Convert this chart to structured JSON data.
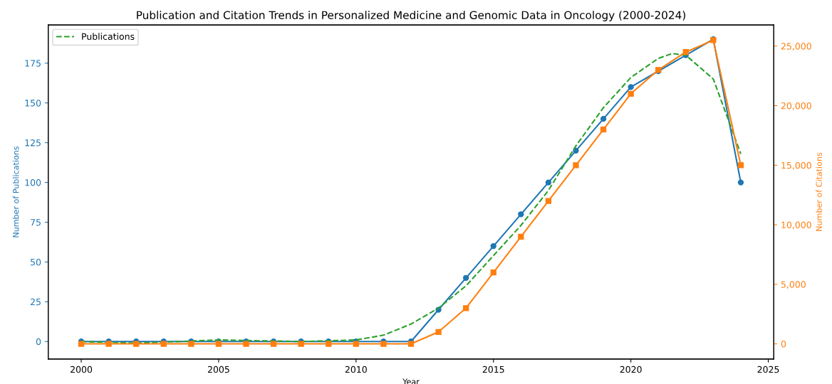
{
  "chart_data": {
    "type": "line",
    "title": "Publication and Citation Trends in Personalized Medicine and Genomic Data in Oncology (2000-2024)",
    "xlabel": "Year",
    "ylabel": "Number of Publications",
    "y2label": "Number of Citations",
    "x": [
      2000,
      2001,
      2002,
      2003,
      2004,
      2005,
      2006,
      2007,
      2008,
      2009,
      2010,
      2011,
      2012,
      2013,
      2014,
      2015,
      2016,
      2017,
      2018,
      2019,
      2020,
      2021,
      2022,
      2023,
      2024
    ],
    "series": [
      {
        "color": "#1f77b4",
        "marker": "circle",
        "line_style": "solid",
        "values": [
          0,
          0,
          0,
          0,
          0,
          0,
          0,
          0,
          0,
          0,
          0,
          0,
          0,
          20,
          40,
          60,
          80,
          100,
          120,
          140,
          160,
          170,
          180,
          190,
          100
        ]
      },
      {
        "color": "#ff7f0e",
        "marker": "square",
        "line_style": "solid",
        "axis": "y2",
        "values": [
          0,
          0,
          0,
          0,
          0,
          0,
          0,
          0,
          0,
          0,
          0,
          0,
          0,
          1000,
          3000,
          6000,
          9000,
          12000,
          15000,
          18000,
          21000,
          23000,
          24500,
          25500,
          15000
        ]
      },
      {
        "name": "Publications",
        "color": "#2ca02c",
        "marker": "none",
        "line_style": "dashed",
        "x": [
          2000,
          2002,
          2005,
          2008,
          2010,
          2011,
          2012,
          2013,
          2014,
          2015,
          2016,
          2017,
          2018,
          2019,
          2020,
          2021,
          2021.5,
          2022,
          2023,
          2024
        ],
        "values": [
          0,
          -1,
          1,
          0,
          1,
          4,
          11,
          21,
          35,
          54,
          73,
          95,
          123,
          147,
          166,
          178,
          181,
          180,
          165,
          118
        ]
      }
    ],
    "xlim": [
      1998.8,
      2025.2
    ],
    "xticks": [
      2000,
      2005,
      2010,
      2015,
      2020,
      2025
    ],
    "ylim": [
      -11,
      199
    ],
    "yticks": [
      0,
      25,
      50,
      75,
      100,
      125,
      150,
      175
    ],
    "y2lim": [
      -1275,
      26775
    ],
    "y2ticks": [
      0,
      {
        "value": 5000,
        "label": "5,000"
      },
      {
        "value": 10000,
        "label": "10,000"
      },
      {
        "value": 15000,
        "label": "15,000"
      },
      {
        "value": 20000,
        "label": "20,000"
      },
      {
        "value": 25000,
        "label": "25,000"
      }
    ],
    "grid": false,
    "legend": "top left"
  }
}
